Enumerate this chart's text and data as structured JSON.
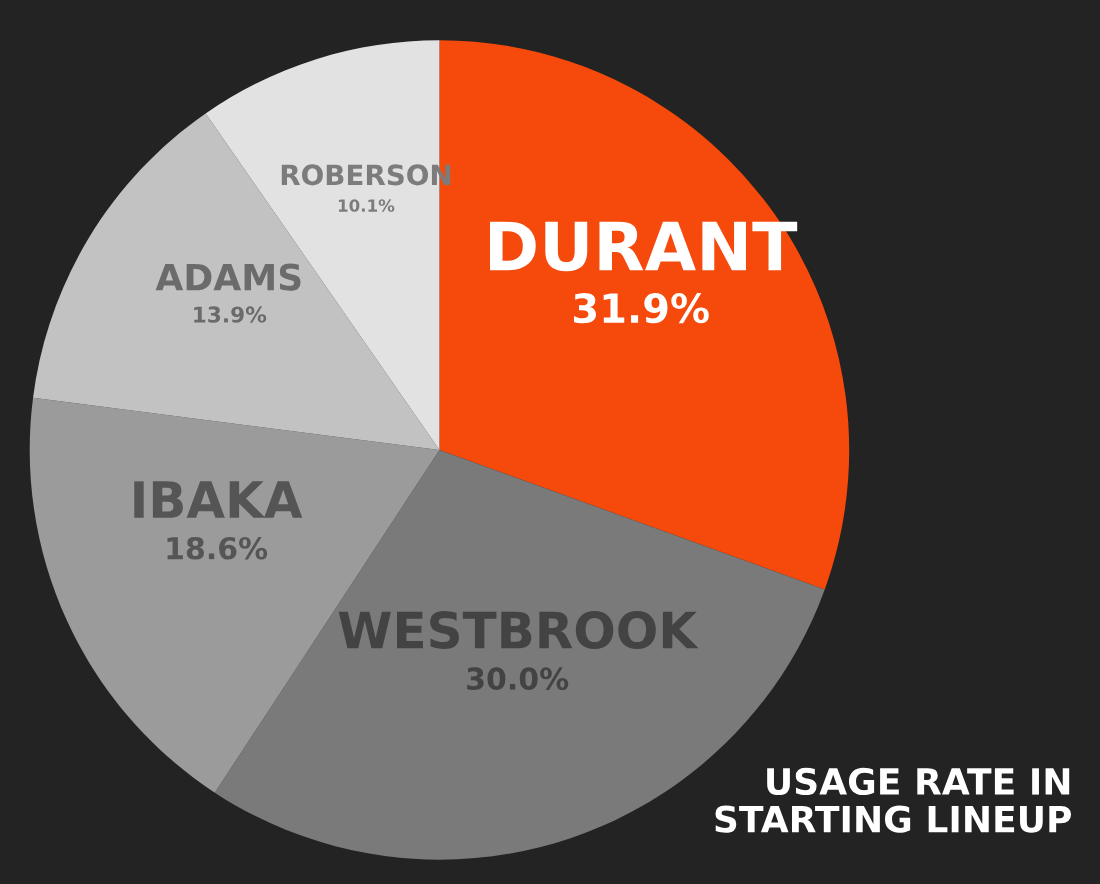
{
  "chart_data": {
    "type": "pie",
    "title": "USAGE RATE IN\nSTARTING LINEUP",
    "categories": [
      "DURANT",
      "WESTBROOK",
      "IBAKA",
      "ADAMS",
      "ROBERSON"
    ],
    "values": [
      31.9,
      30.0,
      18.6,
      13.9,
      10.1
    ],
    "value_labels": [
      "31.9%",
      "30.0%",
      "18.6%",
      "13.9%",
      "10.1%"
    ],
    "colors": [
      "#f54a0c",
      "#7a7a7a",
      "#9b9b9b",
      "#c2c2c2",
      "#e2e2e2"
    ],
    "legend": false
  }
}
